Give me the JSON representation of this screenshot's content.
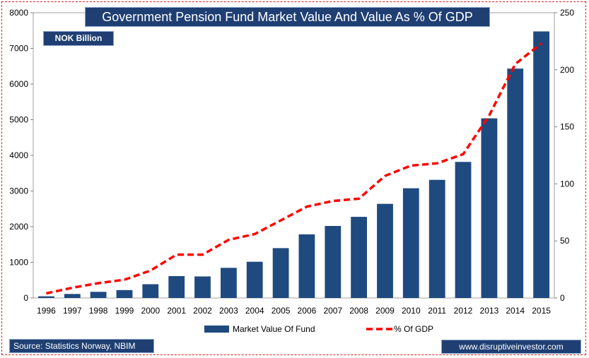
{
  "chart_data": {
    "type": "bar",
    "title": "Government Pension Fund Market Value And Value As % Of GDP",
    "unit_label": "NOK Billion",
    "categories": [
      "1996",
      "1997",
      "1998",
      "1999",
      "2000",
      "2001",
      "2002",
      "2003",
      "2004",
      "2005",
      "2006",
      "2007",
      "2008",
      "2009",
      "2010",
      "2011",
      "2012",
      "2013",
      "2014",
      "2015"
    ],
    "series": [
      {
        "name": "Market Value Of Fund",
        "type": "bar",
        "axis": "left",
        "color": "#1f4a7f",
        "values": [
          48,
          113,
          172,
          222,
          386,
          614,
          604,
          845,
          1016,
          1399,
          1784,
          2019,
          2275,
          2640,
          3077,
          3312,
          3816,
          5038,
          6431,
          7475
        ]
      },
      {
        "name": "% Of GDP",
        "type": "line",
        "axis": "right",
        "color": "#ff0000",
        "style": "dashed",
        "values": [
          4,
          9,
          13,
          16,
          24,
          38,
          38,
          51,
          56,
          68,
          80,
          85,
          87,
          107,
          116,
          118,
          126,
          160,
          205,
          223
        ]
      }
    ],
    "y_left": {
      "min": 0,
      "max": 8000,
      "ticks": [
        0,
        1000,
        2000,
        3000,
        4000,
        5000,
        6000,
        7000,
        8000
      ]
    },
    "y_right": {
      "min": 0,
      "max": 250,
      "ticks": [
        0,
        50,
        100,
        150,
        200,
        250
      ]
    },
    "grid": false,
    "legend_position": "bottom"
  },
  "footer": {
    "source": "Source: Statistics Norway, NBIM",
    "website": "www.disruptiveinvestor.com"
  }
}
